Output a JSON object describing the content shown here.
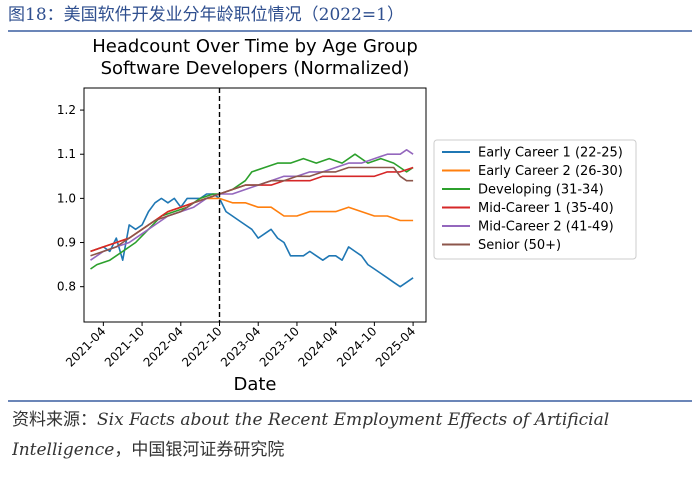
{
  "figure_title": "图18：美国软件开发业分年龄职位情况（2022=1）",
  "source": {
    "prefix": "资料来源：",
    "line1_en": "Six Facts about the Recent Employment Effects of Artificial",
    "line2_en": "Intelligence",
    "line2_suffix": "，中国银河证券研究院"
  },
  "chart_data": {
    "type": "line",
    "title": "Headcount Over Time by Age Group",
    "subtitle": "Software Developers (Normalized)",
    "xlabel": "Date",
    "ylabel": "",
    "x_ticks": [
      "2021-04",
      "2021-10",
      "2022-04",
      "2022-10",
      "2023-04",
      "2023-10",
      "2024-04",
      "2024-10",
      "2025-04"
    ],
    "x_range": [
      "2021-01",
      "2025-06"
    ],
    "ylim": [
      0.72,
      1.25
    ],
    "y_ticks": [
      0.8,
      0.9,
      1.0,
      1.1,
      1.2
    ],
    "y_tick_labels": [
      "0.8",
      "0.9",
      "1.0",
      "1.1",
      "1.2"
    ],
    "vline_x": "2022-10",
    "legend_position": "right",
    "grid": false,
    "series": [
      {
        "name": "Early Career 1 (22-25)",
        "color": "#1f77b4",
        "points": [
          [
            "2021-02",
            0.88
          ],
          [
            "2021-04",
            0.89
          ],
          [
            "2021-05",
            0.88
          ],
          [
            "2021-06",
            0.91
          ],
          [
            "2021-07",
            0.86
          ],
          [
            "2021-08",
            0.94
          ],
          [
            "2021-09",
            0.93
          ],
          [
            "2021-10",
            0.94
          ],
          [
            "2021-11",
            0.97
          ],
          [
            "2021-12",
            0.99
          ],
          [
            "2022-01",
            1.0
          ],
          [
            "2022-02",
            0.99
          ],
          [
            "2022-03",
            1.0
          ],
          [
            "2022-04",
            0.98
          ],
          [
            "2022-05",
            1.0
          ],
          [
            "2022-06",
            1.0
          ],
          [
            "2022-07",
            1.0
          ],
          [
            "2022-08",
            1.01
          ],
          [
            "2022-09",
            1.01
          ],
          [
            "2022-10",
            1.0
          ],
          [
            "2022-11",
            0.97
          ],
          [
            "2022-12",
            0.96
          ],
          [
            "2023-01",
            0.95
          ],
          [
            "2023-02",
            0.94
          ],
          [
            "2023-03",
            0.93
          ],
          [
            "2023-04",
            0.91
          ],
          [
            "2023-05",
            0.92
          ],
          [
            "2023-06",
            0.93
          ],
          [
            "2023-07",
            0.91
          ],
          [
            "2023-08",
            0.9
          ],
          [
            "2023-09",
            0.87
          ],
          [
            "2023-10",
            0.87
          ],
          [
            "2023-11",
            0.87
          ],
          [
            "2023-12",
            0.88
          ],
          [
            "2024-01",
            0.87
          ],
          [
            "2024-02",
            0.86
          ],
          [
            "2024-03",
            0.87
          ],
          [
            "2024-04",
            0.87
          ],
          [
            "2024-05",
            0.86
          ],
          [
            "2024-06",
            0.89
          ],
          [
            "2024-07",
            0.88
          ],
          [
            "2024-08",
            0.87
          ],
          [
            "2024-09",
            0.85
          ],
          [
            "2024-10",
            0.84
          ],
          [
            "2024-11",
            0.83
          ],
          [
            "2024-12",
            0.82
          ],
          [
            "2025-01",
            0.81
          ],
          [
            "2025-02",
            0.8
          ],
          [
            "2025-03",
            0.81
          ],
          [
            "2025-04",
            0.82
          ]
        ]
      },
      {
        "name": "Early Career 2 (26-30)",
        "color": "#ff7f0e",
        "points": [
          [
            "2021-02",
            0.88
          ],
          [
            "2021-04",
            0.89
          ],
          [
            "2021-06",
            0.9
          ],
          [
            "2021-08",
            0.91
          ],
          [
            "2021-10",
            0.93
          ],
          [
            "2021-12",
            0.95
          ],
          [
            "2022-02",
            0.97
          ],
          [
            "2022-04",
            0.98
          ],
          [
            "2022-06",
            0.99
          ],
          [
            "2022-08",
            1.0
          ],
          [
            "2022-10",
            1.0
          ],
          [
            "2022-12",
            0.99
          ],
          [
            "2023-02",
            0.99
          ],
          [
            "2023-04",
            0.98
          ],
          [
            "2023-06",
            0.98
          ],
          [
            "2023-08",
            0.96
          ],
          [
            "2023-10",
            0.96
          ],
          [
            "2023-12",
            0.97
          ],
          [
            "2024-02",
            0.97
          ],
          [
            "2024-04",
            0.97
          ],
          [
            "2024-06",
            0.98
          ],
          [
            "2024-08",
            0.97
          ],
          [
            "2024-10",
            0.96
          ],
          [
            "2024-12",
            0.96
          ],
          [
            "2025-02",
            0.95
          ],
          [
            "2025-04",
            0.95
          ]
        ]
      },
      {
        "name": "Developing (31-34)",
        "color": "#2ca02c",
        "points": [
          [
            "2021-02",
            0.84
          ],
          [
            "2021-03",
            0.85
          ],
          [
            "2021-05",
            0.86
          ],
          [
            "2021-07",
            0.88
          ],
          [
            "2021-09",
            0.9
          ],
          [
            "2021-11",
            0.93
          ],
          [
            "2022-01",
            0.96
          ],
          [
            "2022-03",
            0.97
          ],
          [
            "2022-05",
            0.98
          ],
          [
            "2022-07",
            1.0
          ],
          [
            "2022-09",
            1.01
          ],
          [
            "2022-10",
            1.01
          ],
          [
            "2022-12",
            1.02
          ],
          [
            "2023-02",
            1.04
          ],
          [
            "2023-03",
            1.06
          ],
          [
            "2023-05",
            1.07
          ],
          [
            "2023-07",
            1.08
          ],
          [
            "2023-09",
            1.08
          ],
          [
            "2023-11",
            1.09
          ],
          [
            "2024-01",
            1.08
          ],
          [
            "2024-03",
            1.09
          ],
          [
            "2024-05",
            1.08
          ],
          [
            "2024-07",
            1.1
          ],
          [
            "2024-09",
            1.08
          ],
          [
            "2024-11",
            1.09
          ],
          [
            "2025-01",
            1.08
          ],
          [
            "2025-03",
            1.06
          ],
          [
            "2025-04",
            1.07
          ]
        ]
      },
      {
        "name": "Mid-Career 1 (35-40)",
        "color": "#d62728",
        "points": [
          [
            "2021-02",
            0.88
          ],
          [
            "2021-04",
            0.89
          ],
          [
            "2021-06",
            0.9
          ],
          [
            "2021-08",
            0.91
          ],
          [
            "2021-10",
            0.93
          ],
          [
            "2021-12",
            0.95
          ],
          [
            "2022-02",
            0.97
          ],
          [
            "2022-04",
            0.98
          ],
          [
            "2022-06",
            0.99
          ],
          [
            "2022-08",
            1.0
          ],
          [
            "2022-10",
            1.01
          ],
          [
            "2022-12",
            1.02
          ],
          [
            "2023-02",
            1.03
          ],
          [
            "2023-04",
            1.03
          ],
          [
            "2023-06",
            1.03
          ],
          [
            "2023-08",
            1.04
          ],
          [
            "2023-10",
            1.04
          ],
          [
            "2023-12",
            1.04
          ],
          [
            "2024-02",
            1.05
          ],
          [
            "2024-04",
            1.05
          ],
          [
            "2024-06",
            1.05
          ],
          [
            "2024-08",
            1.05
          ],
          [
            "2024-10",
            1.05
          ],
          [
            "2024-12",
            1.06
          ],
          [
            "2025-02",
            1.06
          ],
          [
            "2025-04",
            1.07
          ]
        ]
      },
      {
        "name": "Mid-Career 2 (41-49)",
        "color": "#9467bd",
        "points": [
          [
            "2021-02",
            0.86
          ],
          [
            "2021-04",
            0.88
          ],
          [
            "2021-06",
            0.89
          ],
          [
            "2021-08",
            0.9
          ],
          [
            "2021-10",
            0.92
          ],
          [
            "2021-12",
            0.94
          ],
          [
            "2022-02",
            0.96
          ],
          [
            "2022-04",
            0.97
          ],
          [
            "2022-06",
            0.98
          ],
          [
            "2022-08",
            1.0
          ],
          [
            "2022-10",
            1.01
          ],
          [
            "2022-12",
            1.01
          ],
          [
            "2023-02",
            1.02
          ],
          [
            "2023-04",
            1.03
          ],
          [
            "2023-06",
            1.04
          ],
          [
            "2023-08",
            1.05
          ],
          [
            "2023-10",
            1.05
          ],
          [
            "2023-12",
            1.06
          ],
          [
            "2024-02",
            1.06
          ],
          [
            "2024-04",
            1.07
          ],
          [
            "2024-06",
            1.08
          ],
          [
            "2024-08",
            1.08
          ],
          [
            "2024-10",
            1.09
          ],
          [
            "2024-12",
            1.1
          ],
          [
            "2025-01",
            1.1
          ],
          [
            "2025-02",
            1.1
          ],
          [
            "2025-03",
            1.11
          ],
          [
            "2025-04",
            1.1
          ]
        ]
      },
      {
        "name": "Senior (50+)",
        "color": "#8c564b",
        "points": [
          [
            "2021-02",
            0.87
          ],
          [
            "2021-04",
            0.88
          ],
          [
            "2021-06",
            0.89
          ],
          [
            "2021-08",
            0.91
          ],
          [
            "2021-10",
            0.93
          ],
          [
            "2021-12",
            0.95
          ],
          [
            "2022-02",
            0.96
          ],
          [
            "2022-04",
            0.97
          ],
          [
            "2022-06",
            0.99
          ],
          [
            "2022-08",
            1.0
          ],
          [
            "2022-10",
            1.01
          ],
          [
            "2022-12",
            1.02
          ],
          [
            "2023-02",
            1.03
          ],
          [
            "2023-04",
            1.03
          ],
          [
            "2023-06",
            1.04
          ],
          [
            "2023-08",
            1.04
          ],
          [
            "2023-10",
            1.05
          ],
          [
            "2023-12",
            1.05
          ],
          [
            "2024-02",
            1.06
          ],
          [
            "2024-04",
            1.06
          ],
          [
            "2024-06",
            1.07
          ],
          [
            "2024-08",
            1.07
          ],
          [
            "2024-10",
            1.07
          ],
          [
            "2024-12",
            1.07
          ],
          [
            "2025-01",
            1.07
          ],
          [
            "2025-02",
            1.05
          ],
          [
            "2025-03",
            1.04
          ],
          [
            "2025-04",
            1.04
          ]
        ]
      }
    ]
  }
}
